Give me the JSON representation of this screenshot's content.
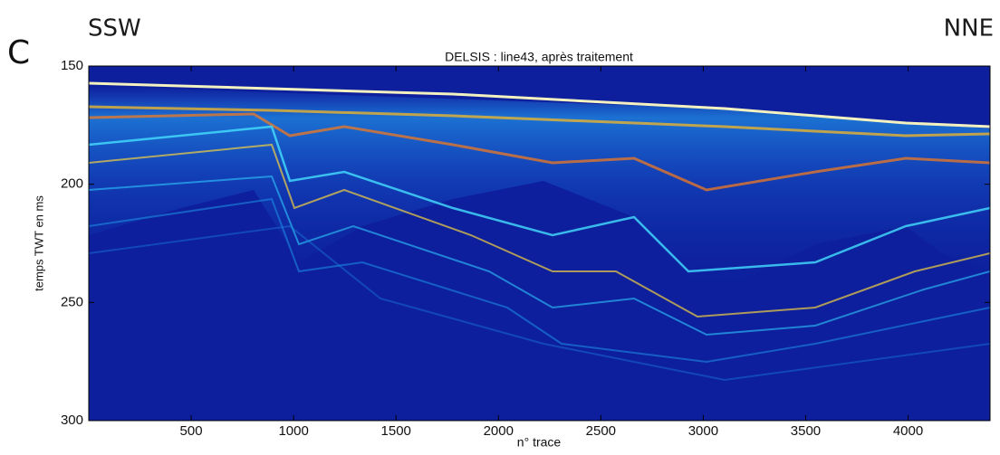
{
  "chart_data": {
    "type": "heatmap",
    "panel_label": "C",
    "left_label": "SSW",
    "right_label": "NNE",
    "title": "DELSIS : line43, après traitement",
    "x_label": "n° trace",
    "y_label": "temps TWT en ms",
    "xlim": [
      0,
      4400
    ],
    "xticks": [
      500,
      1000,
      1500,
      2000,
      2500,
      3000,
      3500,
      4000
    ],
    "ylim": [
      150,
      300
    ],
    "yticks": [
      150,
      200,
      250,
      300
    ],
    "y_inverted": true,
    "background_color": "#0d1f9c"
  }
}
